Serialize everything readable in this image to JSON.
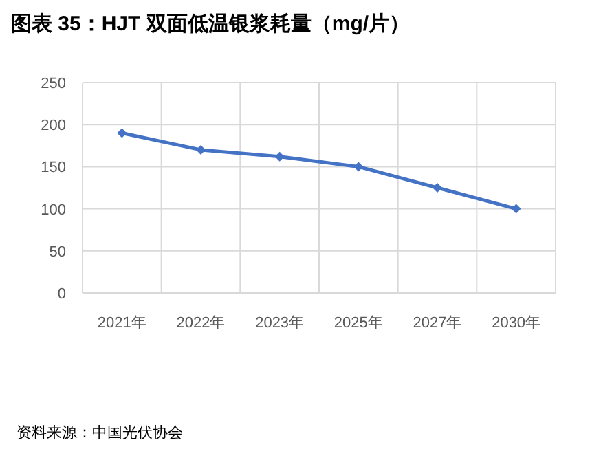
{
  "chart_data": {
    "type": "line",
    "title": "图表 35：HJT 双面低温银浆耗量（mg/片）",
    "categories": [
      "2021年",
      "2022年",
      "2023年",
      "2025年",
      "2027年",
      "2030年"
    ],
    "series": [
      {
        "color": "#4472c4",
        "values": [
          190,
          170,
          162,
          150,
          125,
          100
        ]
      }
    ],
    "ylim": [
      0,
      250
    ],
    "yticks": [
      0,
      50,
      100,
      150,
      200,
      250
    ],
    "grid": true,
    "marker": "diamond",
    "line_style": "solid",
    "annotations": [
      "资料来源：中国光伏协会"
    ]
  }
}
